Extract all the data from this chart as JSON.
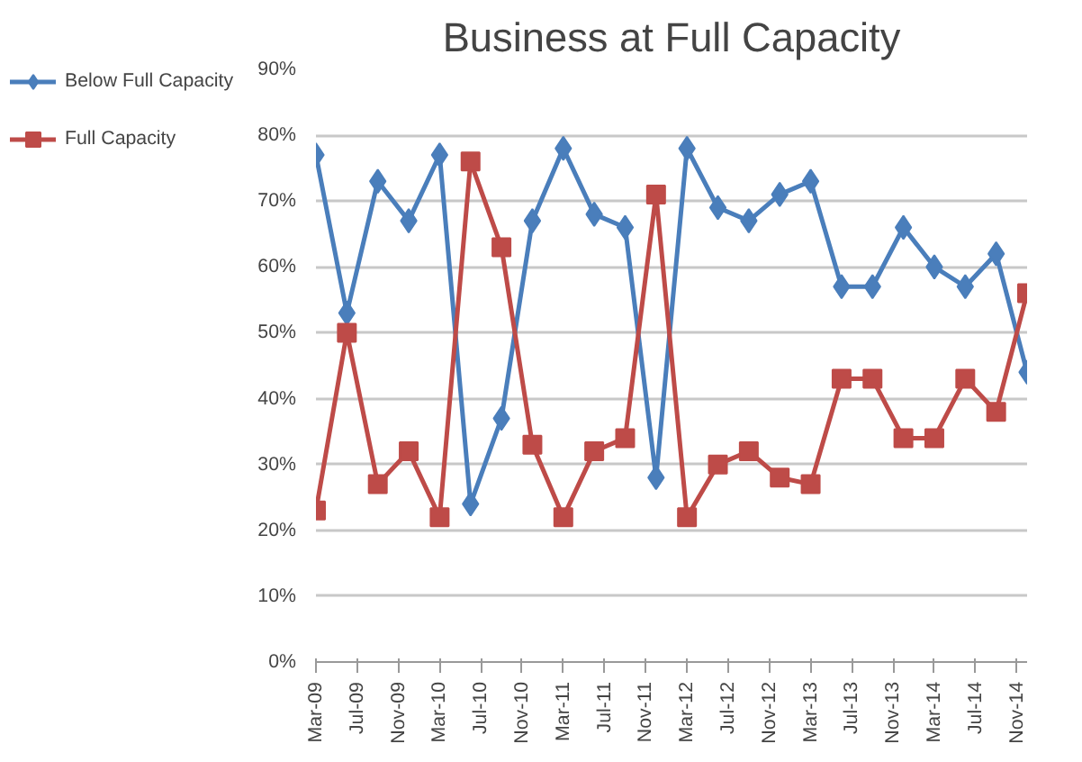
{
  "chart_data": {
    "type": "line",
    "title": "Business at Full Capacity",
    "x": [
      "2009-03",
      "2009-06",
      "2009-09",
      "2009-12",
      "2010-03",
      "2010-06",
      "2010-09",
      "2010-12",
      "2011-03",
      "2011-06",
      "2011-09",
      "2011-12",
      "2012-03",
      "2012-06",
      "2012-09",
      "2012-12",
      "2013-03",
      "2013-06",
      "2013-09",
      "2013-12",
      "2014-03",
      "2014-06",
      "2014-09",
      "2014-12"
    ],
    "series": [
      {
        "name": "Below Full Capacity",
        "color": "#4a7ebb",
        "marker": "diamond",
        "values": [
          77,
          53,
          73,
          67,
          77,
          24,
          37,
          67,
          78,
          68,
          66,
          28,
          78,
          69,
          67,
          71,
          73,
          57,
          57,
          66,
          60,
          57,
          62,
          44
        ]
      },
      {
        "name": "Full Capacity",
        "color": "#be4b48",
        "marker": "square",
        "values": [
          23,
          50,
          27,
          32,
          22,
          76,
          63,
          33,
          22,
          32,
          34,
          71,
          22,
          30,
          32,
          28,
          27,
          43,
          43,
          34,
          34,
          43,
          38,
          56
        ]
      }
    ],
    "ylim": [
      0,
      90
    ],
    "yticks": [
      {
        "value": 0,
        "label": "0%"
      },
      {
        "value": 10,
        "label": "10%"
      },
      {
        "value": 20,
        "label": "20%"
      },
      {
        "value": 30,
        "label": "30%"
      },
      {
        "value": 40,
        "label": "40%"
      },
      {
        "value": 50,
        "label": "50%"
      },
      {
        "value": 60,
        "label": "60%"
      },
      {
        "value": 70,
        "label": "70%"
      },
      {
        "value": 80,
        "label": "80%"
      },
      {
        "value": 90,
        "label": "90%"
      }
    ],
    "xlim": [
      "2009-03",
      "2014-12"
    ],
    "xticks": [
      {
        "value": "2009-03",
        "label": "Mar-09"
      },
      {
        "value": "2009-07",
        "label": "Jul-09"
      },
      {
        "value": "2009-11",
        "label": "Nov-09"
      },
      {
        "value": "2010-03",
        "label": "Mar-10"
      },
      {
        "value": "2010-07",
        "label": "Jul-10"
      },
      {
        "value": "2010-11",
        "label": "Nov-10"
      },
      {
        "value": "2011-03",
        "label": "Mar-11"
      },
      {
        "value": "2011-07",
        "label": "Jul-11"
      },
      {
        "value": "2011-11",
        "label": "Nov-11"
      },
      {
        "value": "2012-03",
        "label": "Mar-12"
      },
      {
        "value": "2012-07",
        "label": "Jul-12"
      },
      {
        "value": "2012-11",
        "label": "Nov-12"
      },
      {
        "value": "2013-03",
        "label": "Mar-13"
      },
      {
        "value": "2013-07",
        "label": "Jul-13"
      },
      {
        "value": "2013-11",
        "label": "Nov-13"
      },
      {
        "value": "2014-03",
        "label": "Mar-14"
      },
      {
        "value": "2014-07",
        "label": "Jul-14"
      },
      {
        "value": "2014-11",
        "label": "Nov-14"
      }
    ],
    "grid": "y",
    "legend": "left",
    "line_style": "solid"
  }
}
